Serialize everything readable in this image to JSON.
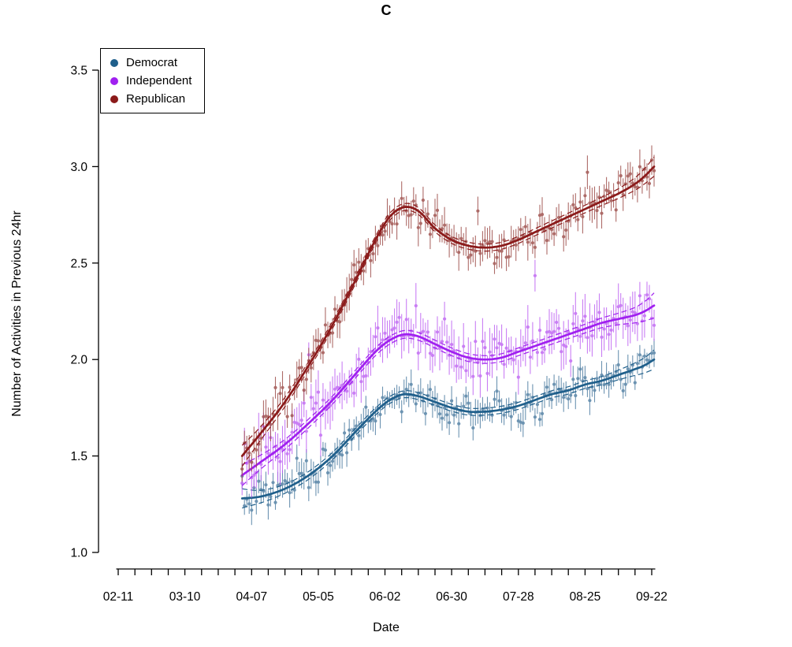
{
  "chart_data": {
    "type": "scatter",
    "title": "C",
    "xlabel": "Date",
    "ylabel": "Number of Activities in Previous 24hr",
    "x_axis": {
      "tick_labels": [
        "02-11",
        "03-10",
        "04-07",
        "05-05",
        "06-02",
        "06-30",
        "07-28",
        "08-25",
        "09-22"
      ],
      "tick_days": [
        0,
        28,
        56,
        84,
        112,
        140,
        168,
        196,
        224
      ],
      "minor_tick_interval_days": 7,
      "day_range": [
        0,
        226
      ]
    },
    "y_axis": {
      "ticks": [
        1.0,
        1.5,
        2.0,
        2.5,
        3.0,
        3.5
      ],
      "range": [
        1.0,
        3.5
      ]
    },
    "data_day_range": [
      52,
      225
    ],
    "n_points_per_series": 174,
    "sampling": "daily mean with error bars, loess-style trend with dashed confidence band",
    "legend": {
      "position": "top-left",
      "items": [
        "Democrat",
        "Independent",
        "Republican"
      ]
    },
    "series": [
      {
        "name": "Democrat",
        "line_color": "#1F5F8B",
        "point_color": "#4C7CA1",
        "trend": {
          "days": [
            52,
            60,
            70,
            80,
            90,
            100,
            108,
            114,
            120,
            126,
            133,
            140,
            147,
            154,
            161,
            168,
            175,
            182,
            189,
            196,
            203,
            210,
            217,
            221,
            225
          ],
          "values": [
            1.28,
            1.29,
            1.33,
            1.4,
            1.5,
            1.63,
            1.73,
            1.79,
            1.82,
            1.81,
            1.78,
            1.75,
            1.73,
            1.73,
            1.74,
            1.76,
            1.79,
            1.82,
            1.84,
            1.87,
            1.89,
            1.92,
            1.95,
            1.97,
            2.0
          ]
        },
        "noise_sd": 0.042,
        "errorbar_halfwidth": 0.052,
        "outlier_rate": 0.03,
        "outlier_range": 0.15,
        "band_halfwidth": {
          "mid": 0.018,
          "start": 0.05,
          "end": 0.05
        },
        "seed": 7
      },
      {
        "name": "Independent",
        "line_color": "#A020F0",
        "point_color": "#BE62F2",
        "trend": {
          "days": [
            52,
            60,
            70,
            80,
            90,
            100,
            108,
            114,
            120,
            126,
            133,
            140,
            147,
            154,
            161,
            168,
            175,
            182,
            189,
            196,
            203,
            210,
            217,
            221,
            225
          ],
          "values": [
            1.4,
            1.47,
            1.56,
            1.67,
            1.79,
            1.93,
            2.04,
            2.1,
            2.13,
            2.12,
            2.08,
            2.04,
            2.01,
            2.0,
            2.01,
            2.04,
            2.07,
            2.1,
            2.13,
            2.16,
            2.19,
            2.21,
            2.23,
            2.25,
            2.28
          ]
        },
        "noise_sd": 0.06,
        "errorbar_halfwidth": 0.085,
        "outlier_rate": 0.07,
        "outlier_range": 0.38,
        "band_halfwidth": {
          "mid": 0.02,
          "start": 0.055,
          "end": 0.065
        },
        "seed": 13
      },
      {
        "name": "Republican",
        "line_color": "#8B1A1A",
        "point_color": "#9C4B47",
        "trend": {
          "days": [
            52,
            60,
            70,
            80,
            90,
            100,
            108,
            114,
            120,
            126,
            133,
            140,
            147,
            154,
            161,
            168,
            175,
            182,
            189,
            196,
            203,
            210,
            217,
            221,
            225
          ],
          "values": [
            1.5,
            1.62,
            1.78,
            1.97,
            2.18,
            2.42,
            2.62,
            2.74,
            2.79,
            2.77,
            2.68,
            2.62,
            2.59,
            2.58,
            2.59,
            2.62,
            2.66,
            2.7,
            2.74,
            2.78,
            2.82,
            2.86,
            2.91,
            2.95,
            3.0
          ]
        },
        "noise_sd": 0.055,
        "errorbar_halfwidth": 0.065,
        "outlier_rate": 0.025,
        "outlier_range": 0.22,
        "band_halfwidth": {
          "mid": 0.018,
          "start": 0.055,
          "end": 0.05
        },
        "seed": 21
      }
    ]
  }
}
